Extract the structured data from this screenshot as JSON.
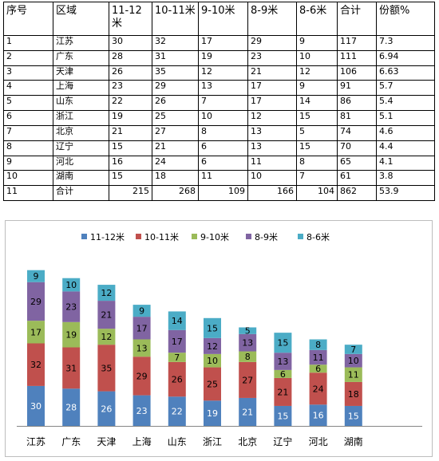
{
  "table": {
    "headers": [
      "序号",
      "区域",
      "11-12米",
      "10-11米",
      "9-10米",
      "8-9米",
      "8-6米",
      "合计",
      "份额%"
    ],
    "rows": [
      [
        "1",
        "江苏",
        "30",
        "32",
        "17",
        "29",
        "9",
        "117",
        "7.3"
      ],
      [
        "2",
        "广东",
        "28",
        "31",
        "19",
        "23",
        "10",
        "111",
        "6.94"
      ],
      [
        "3",
        "天津",
        "26",
        "35",
        "12",
        "21",
        "12",
        "106",
        "6.63"
      ],
      [
        "4",
        "上海",
        "23",
        "29",
        "13",
        "17",
        "9",
        "91",
        "5.7"
      ],
      [
        "5",
        "山东",
        "22",
        "26",
        "7",
        "17",
        "14",
        "86",
        "5.4"
      ],
      [
        "6",
        "浙江",
        "19",
        "25",
        "10",
        "12",
        "15",
        "81",
        "5.1"
      ],
      [
        "7",
        "北京",
        "21",
        "27",
        "8",
        "13",
        "5",
        "74",
        "4.6"
      ],
      [
        "8",
        "辽宁",
        "15",
        "21",
        "6",
        "13",
        "15",
        "70",
        "4.4"
      ],
      [
        "9",
        "河北",
        "16",
        "24",
        "6",
        "11",
        "8",
        "65",
        "4.1"
      ],
      [
        "10",
        "湖南",
        "15",
        "18",
        "11",
        "10",
        "7",
        "61",
        "3.8"
      ],
      [
        "11",
        "合计",
        "215",
        "268",
        "109",
        "166",
        "104",
        "862",
        "53.9"
      ]
    ]
  },
  "chart_data": {
    "type": "bar",
    "stacked": true,
    "categories": [
      "江苏",
      "广东",
      "天津",
      "上海",
      "山东",
      "浙江",
      "北京",
      "辽宁",
      "河北",
      "湖南"
    ],
    "series": [
      {
        "name": "11-12米",
        "color": "#4f81bd",
        "values": [
          30,
          28,
          26,
          23,
          22,
          19,
          21,
          15,
          16,
          15
        ]
      },
      {
        "name": "10-11米",
        "color": "#c0504d",
        "values": [
          32,
          31,
          35,
          29,
          26,
          25,
          27,
          21,
          24,
          18
        ]
      },
      {
        "name": "9-10米",
        "color": "#9bbb59",
        "values": [
          17,
          19,
          12,
          13,
          7,
          10,
          8,
          6,
          6,
          11
        ]
      },
      {
        "name": "8-9米",
        "color": "#8064a2",
        "values": [
          29,
          23,
          21,
          17,
          17,
          12,
          13,
          13,
          11,
          10
        ]
      },
      {
        "name": "8-6米",
        "color": "#4bacc6",
        "values": [
          9,
          10,
          12,
          9,
          14,
          15,
          5,
          15,
          8,
          7
        ]
      }
    ],
    "legend_position": "top",
    "grid": false,
    "ylim": [
      0,
      130
    ]
  }
}
